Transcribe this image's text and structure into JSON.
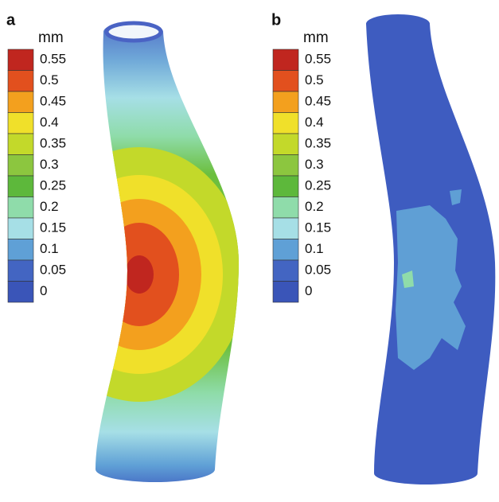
{
  "panels": [
    {
      "label": "a",
      "unit": "mm",
      "levels": [
        0.55,
        0.5,
        0.45,
        0.4,
        0.35,
        0.3,
        0.25,
        0.2,
        0.15,
        0.1,
        0.05,
        0
      ]
    },
    {
      "label": "b",
      "unit": "mm",
      "levels": [
        0.55,
        0.5,
        0.45,
        0.4,
        0.35,
        0.3,
        0.25,
        0.2,
        0.15,
        0.1,
        0.05,
        0
      ]
    }
  ],
  "colors": [
    "#c0261f",
    "#e2501e",
    "#f3a01e",
    "#f0e02a",
    "#c3d92a",
    "#8cc63f",
    "#5db83b",
    "#8fdcaa",
    "#a6dfe6",
    "#5fa0d6",
    "#4365c2",
    "#3a55b8"
  ]
}
